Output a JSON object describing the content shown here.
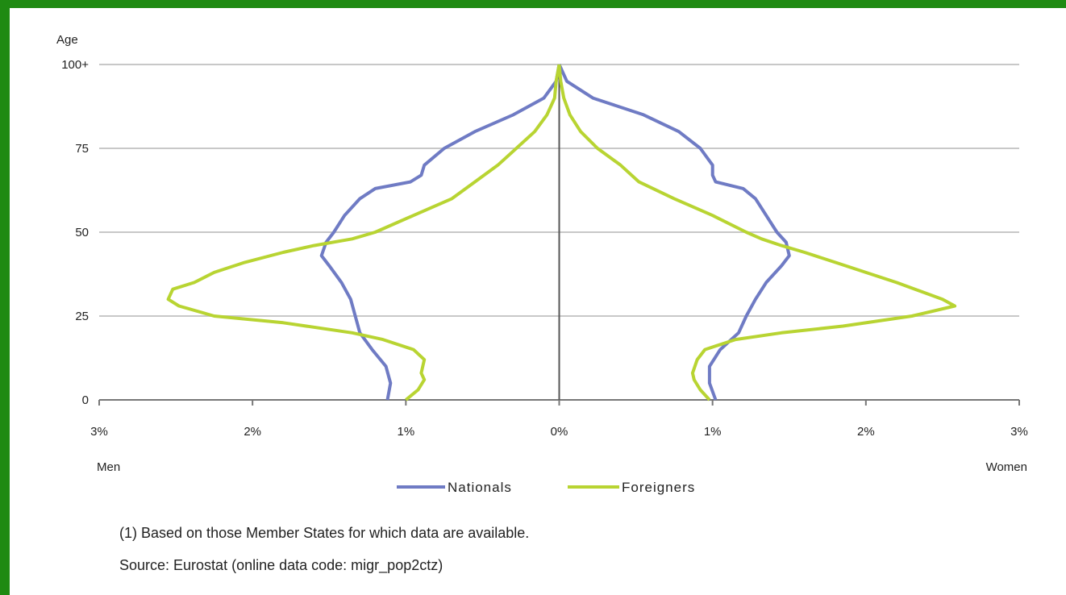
{
  "chart_data": {
    "type": "line",
    "title": "",
    "ylabel": "Age",
    "xlabel_left": "Men",
    "xlabel_right": "Women",
    "x_tick_labels": [
      "3%",
      "2%",
      "1%",
      "0%",
      "1%",
      "2%",
      "3%"
    ],
    "x_tick_values": [
      -3,
      -2,
      -1,
      0,
      1,
      2,
      3
    ],
    "y_tick_labels": [
      "0",
      "25",
      "50",
      "75",
      "100+"
    ],
    "y_tick_values": [
      0,
      25,
      50,
      75,
      100
    ],
    "xlim": [
      -3,
      3
    ],
    "ylim": [
      0,
      100
    ],
    "grid": "horizontal",
    "legend_position": "bottom-center",
    "colors": {
      "Nationals": "#6f7bc4",
      "Foreigners": "#b8d432",
      "axis": "#777777",
      "center_line": "#555555"
    },
    "series": [
      {
        "name": "Nationals",
        "left_men": [
          {
            "age": 0,
            "pct": 1.12
          },
          {
            "age": 5,
            "pct": 1.1
          },
          {
            "age": 10,
            "pct": 1.13
          },
          {
            "age": 15,
            "pct": 1.22
          },
          {
            "age": 20,
            "pct": 1.3
          },
          {
            "age": 25,
            "pct": 1.33
          },
          {
            "age": 30,
            "pct": 1.36
          },
          {
            "age": 35,
            "pct": 1.42
          },
          {
            "age": 40,
            "pct": 1.5
          },
          {
            "age": 43,
            "pct": 1.55
          },
          {
            "age": 47,
            "pct": 1.52
          },
          {
            "age": 50,
            "pct": 1.47
          },
          {
            "age": 55,
            "pct": 1.4
          },
          {
            "age": 60,
            "pct": 1.3
          },
          {
            "age": 63,
            "pct": 1.2
          },
          {
            "age": 65,
            "pct": 0.97
          },
          {
            "age": 67,
            "pct": 0.9
          },
          {
            "age": 70,
            "pct": 0.88
          },
          {
            "age": 75,
            "pct": 0.75
          },
          {
            "age": 80,
            "pct": 0.55
          },
          {
            "age": 85,
            "pct": 0.3
          },
          {
            "age": 90,
            "pct": 0.1
          },
          {
            "age": 95,
            "pct": 0.02
          },
          {
            "age": 100,
            "pct": 0.0
          }
        ],
        "right_women": [
          {
            "age": 0,
            "pct": 1.02
          },
          {
            "age": 5,
            "pct": 0.98
          },
          {
            "age": 10,
            "pct": 0.98
          },
          {
            "age": 15,
            "pct": 1.05
          },
          {
            "age": 20,
            "pct": 1.17
          },
          {
            "age": 25,
            "pct": 1.22
          },
          {
            "age": 30,
            "pct": 1.28
          },
          {
            "age": 35,
            "pct": 1.35
          },
          {
            "age": 40,
            "pct": 1.45
          },
          {
            "age": 43,
            "pct": 1.5
          },
          {
            "age": 47,
            "pct": 1.48
          },
          {
            "age": 50,
            "pct": 1.42
          },
          {
            "age": 55,
            "pct": 1.35
          },
          {
            "age": 60,
            "pct": 1.28
          },
          {
            "age": 63,
            "pct": 1.2
          },
          {
            "age": 65,
            "pct": 1.02
          },
          {
            "age": 67,
            "pct": 1.0
          },
          {
            "age": 70,
            "pct": 1.0
          },
          {
            "age": 75,
            "pct": 0.92
          },
          {
            "age": 80,
            "pct": 0.78
          },
          {
            "age": 85,
            "pct": 0.55
          },
          {
            "age": 90,
            "pct": 0.22
          },
          {
            "age": 95,
            "pct": 0.05
          },
          {
            "age": 100,
            "pct": 0.0
          }
        ]
      },
      {
        "name": "Foreigners",
        "left_men": [
          {
            "age": 0,
            "pct": 1.0
          },
          {
            "age": 3,
            "pct": 0.92
          },
          {
            "age": 6,
            "pct": 0.88
          },
          {
            "age": 8,
            "pct": 0.9
          },
          {
            "age": 12,
            "pct": 0.88
          },
          {
            "age": 15,
            "pct": 0.95
          },
          {
            "age": 18,
            "pct": 1.15
          },
          {
            "age": 20,
            "pct": 1.35
          },
          {
            "age": 23,
            "pct": 1.8
          },
          {
            "age": 25,
            "pct": 2.25
          },
          {
            "age": 28,
            "pct": 2.48
          },
          {
            "age": 30,
            "pct": 2.55
          },
          {
            "age": 33,
            "pct": 2.52
          },
          {
            "age": 35,
            "pct": 2.38
          },
          {
            "age": 38,
            "pct": 2.25
          },
          {
            "age": 41,
            "pct": 2.05
          },
          {
            "age": 44,
            "pct": 1.8
          },
          {
            "age": 46,
            "pct": 1.6
          },
          {
            "age": 48,
            "pct": 1.35
          },
          {
            "age": 50,
            "pct": 1.2
          },
          {
            "age": 55,
            "pct": 0.95
          },
          {
            "age": 60,
            "pct": 0.7
          },
          {
            "age": 65,
            "pct": 0.55
          },
          {
            "age": 70,
            "pct": 0.4
          },
          {
            "age": 75,
            "pct": 0.28
          },
          {
            "age": 80,
            "pct": 0.16
          },
          {
            "age": 85,
            "pct": 0.08
          },
          {
            "age": 90,
            "pct": 0.03
          },
          {
            "age": 95,
            "pct": 0.02
          },
          {
            "age": 100,
            "pct": 0.0
          }
        ],
        "right_women": [
          {
            "age": 0,
            "pct": 0.98
          },
          {
            "age": 3,
            "pct": 0.92
          },
          {
            "age": 6,
            "pct": 0.88
          },
          {
            "age": 8,
            "pct": 0.87
          },
          {
            "age": 12,
            "pct": 0.9
          },
          {
            "age": 15,
            "pct": 0.95
          },
          {
            "age": 18,
            "pct": 1.15
          },
          {
            "age": 20,
            "pct": 1.45
          },
          {
            "age": 22,
            "pct": 1.85
          },
          {
            "age": 25,
            "pct": 2.3
          },
          {
            "age": 28,
            "pct": 2.58
          },
          {
            "age": 30,
            "pct": 2.5
          },
          {
            "age": 33,
            "pct": 2.32
          },
          {
            "age": 35,
            "pct": 2.2
          },
          {
            "age": 38,
            "pct": 2.0
          },
          {
            "age": 41,
            "pct": 1.8
          },
          {
            "age": 44,
            "pct": 1.6
          },
          {
            "age": 46,
            "pct": 1.45
          },
          {
            "age": 48,
            "pct": 1.32
          },
          {
            "age": 50,
            "pct": 1.22
          },
          {
            "age": 55,
            "pct": 1.0
          },
          {
            "age": 60,
            "pct": 0.75
          },
          {
            "age": 65,
            "pct": 0.52
          },
          {
            "age": 70,
            "pct": 0.4
          },
          {
            "age": 75,
            "pct": 0.25
          },
          {
            "age": 80,
            "pct": 0.14
          },
          {
            "age": 85,
            "pct": 0.07
          },
          {
            "age": 90,
            "pct": 0.03
          },
          {
            "age": 95,
            "pct": 0.01
          },
          {
            "age": 100,
            "pct": 0.0
          }
        ]
      }
    ]
  },
  "notes": {
    "footnote": "(1) Based on those Member States for which data are available.",
    "source": "Source: Eurostat (online data code: migr_pop2ctz)"
  }
}
